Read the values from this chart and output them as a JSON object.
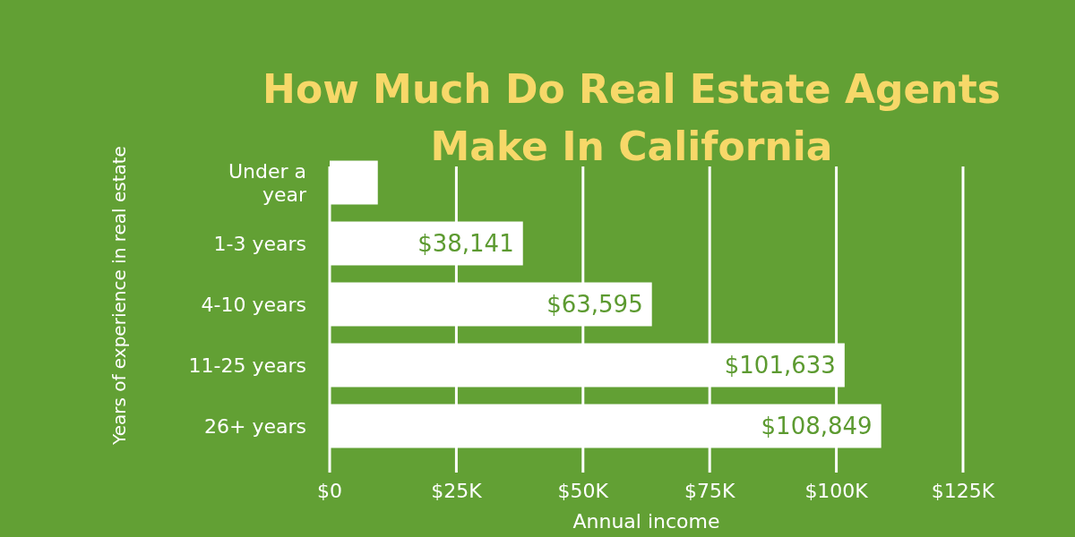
{
  "chart_data": {
    "type": "bar",
    "orientation": "horizontal",
    "title": "How Much Do Real Estate Agents Make In California",
    "xlabel": "Annual income",
    "ylabel": "Years of experience in real estate",
    "categories": [
      "Under a year",
      "1-3 years",
      "4-10 years",
      "11-25 years",
      "26+ years"
    ],
    "values": [
      9500,
      38141,
      63595,
      101633,
      108849
    ],
    "value_labels": [
      null,
      "$38,141",
      "$63,595",
      "$101,633",
      "$108,849"
    ],
    "color": "#ffffff",
    "xlim": [
      0,
      125000
    ],
    "xticks": [
      {
        "value": 0,
        "label": "$0"
      },
      {
        "value": 25000,
        "label": "$25K"
      },
      {
        "value": 50000,
        "label": "$50K"
      },
      {
        "value": 75000,
        "label": "$75K"
      },
      {
        "value": 100000,
        "label": "$100K"
      },
      {
        "value": 125000,
        "label": "$125K"
      }
    ],
    "grid": "x"
  }
}
